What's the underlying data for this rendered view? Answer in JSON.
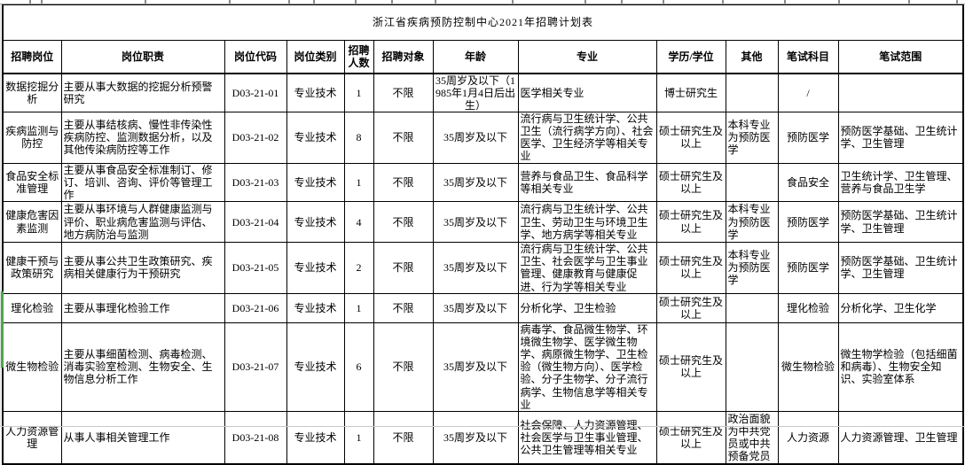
{
  "page": {
    "title": "浙江省疾病预防控制中心2021年招聘计划表"
  },
  "table": {
    "columns": [
      {
        "key": "position",
        "label": "招聘岗位"
      },
      {
        "key": "duties",
        "label": "岗位职责"
      },
      {
        "key": "code",
        "label": "岗位代码"
      },
      {
        "key": "category",
        "label": "岗位类别"
      },
      {
        "key": "count",
        "label": "招聘人数"
      },
      {
        "key": "target",
        "label": "招聘对象"
      },
      {
        "key": "age",
        "label": "年龄"
      },
      {
        "key": "major",
        "label": "专业"
      },
      {
        "key": "degree",
        "label": "学历/学位"
      },
      {
        "key": "other",
        "label": "其他"
      },
      {
        "key": "subject",
        "label": "笔试科目"
      },
      {
        "key": "scope",
        "label": "笔试范围"
      }
    ],
    "rows": [
      {
        "position": "数据挖掘分析",
        "duties": "主要从事大数据的挖掘分析预警研究",
        "code": "D03-21-01",
        "category": "专业技术",
        "count": "1",
        "target": "不限",
        "age": "35周岁及以下（1985年1月4日后出生）",
        "major": "医学相关专业",
        "degree": "博士研究生",
        "other": "",
        "subject": "/",
        "scope": ""
      },
      {
        "position": "疾病监测与防控",
        "duties": "主要从事结核病、慢性非传染性疾病防控、监测数据分析，以及其他传染病防控等工作",
        "code": "D03-21-02",
        "category": "专业技术",
        "count": "8",
        "target": "不限",
        "age": "35周岁及以下",
        "major": "流行病与卫生统计学、公共卫生（流行病学方向）、社会医学、卫生经济学等相关专业",
        "degree": "硕士研究生及以上",
        "other": "本科专业为预防医学",
        "subject": "预防医学",
        "scope": "预防医学基础、卫生统计学、卫生管理"
      },
      {
        "position": "食品安全标准管理",
        "duties": "主要从事食品安全标准制订、修订、培训、咨询、评价等管理工作",
        "code": "D03-21-03",
        "category": "专业技术",
        "count": "1",
        "target": "不限",
        "age": "35周岁及以下",
        "major": "营养与食品卫生、食品科学等相关专业",
        "degree": "硕士研究生及以上",
        "other": "",
        "subject": "食品安全",
        "scope": "卫生统计学、卫生管理、营养与食品卫生学"
      },
      {
        "position": "健康危害因素监测",
        "duties": "主要从事环境与人群健康监测与评价、职业病危害监测与评估、地方病防治与监测",
        "code": "D03-21-04",
        "category": "专业技术",
        "count": "4",
        "target": "不限",
        "age": "35周岁及以下",
        "major": "流行病与卫生统计学、公共卫生、劳动卫生与环境卫生学、地方病学等相关专业",
        "degree": "硕士研究生及以上",
        "other": "本科专业为预防医学",
        "subject": "预防医学",
        "scope": "预防医学基础、卫生统计学、卫生管理"
      },
      {
        "position": "健康干预与政策研究",
        "duties": "主要从事公共卫生政策研究、疾病相关健康行为干预研究",
        "code": "D03-21-05",
        "category": "专业技术",
        "count": "2",
        "target": "不限",
        "age": "35周岁及以下",
        "major": "流行病与卫生统计学、公共卫生、社会医学与卫生事业管理、健康教育与健康促进、行为学等相关专业",
        "degree": "硕士研究生及以上",
        "other": "本科专业为预防医学",
        "subject": "预防医学",
        "scope": "预防医学基础、卫生统计学、卫生管理"
      },
      {
        "position": "理化检验",
        "duties": "主要从事理化检验工作",
        "code": "D03-21-06",
        "category": "专业技术",
        "count": "1",
        "target": "不限",
        "age": "35周岁及以下",
        "major": "分析化学、卫生检验",
        "degree": "硕士研究生及以上",
        "other": "",
        "subject": "理化检验",
        "scope": "分析化学、卫生化学"
      },
      {
        "position": "微生物检验",
        "duties": "主要从事细菌检测、病毒检测、消毒实验室检测、生物安全、生物信息分析工作",
        "code": "D03-21-07",
        "category": "专业技术",
        "count": "6",
        "target": "不限",
        "age": "35周岁及以下",
        "major": "病毒学、食品微生物学、环境微生物学、医学微生物学、病原微生物学、卫生检验（微生物方向）、医学检验、分子生物学、分子流行病学、生物信息学等相关专业",
        "degree": "硕士研究生及以上",
        "other": "",
        "subject": "微生物检验",
        "scope": "微生物学检验（包括细菌和病毒）、生物安全知识、实验室体系"
      },
      {
        "position": "人力资源管理",
        "duties": "从事人事相关管理工作",
        "code": "D03-21-08",
        "category": "专业技术",
        "count": "1",
        "target": "不限",
        "age": "35周岁及以下",
        "major": "社会保障、人力资源管理、社会医学与卫生事业管理、公共卫生管理等相关专业",
        "degree": "硕士研究生及以上",
        "other": "政治面貌为中共党员或中共预备党员",
        "subject": "人力资源",
        "scope": "人力资源管理、卫生管理"
      }
    ]
  },
  "colors": {
    "selection_green": "#4ea64e",
    "grid_line_gray": "#a3a3a3",
    "border_black": "#000000"
  }
}
